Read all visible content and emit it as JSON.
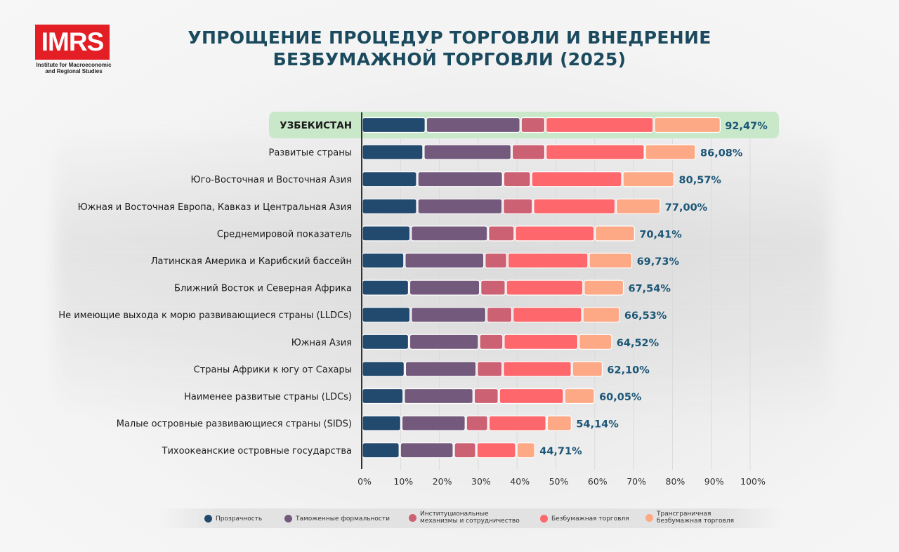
{
  "logo": {
    "name": "IMRS",
    "subtitle_line1": "Institute for Macroeconomic",
    "subtitle_line2": "and Regional Studies",
    "brand_color": "#e41e25"
  },
  "title_line1": "УПРОЩЕНИЕ ПРОЦЕДУР ТОРГОВЛИ И ВНЕДРЕНИЕ",
  "title_line2": "БЕЗБУМАЖНОЙ ТОРГОВЛИ (2025)",
  "chart_data": {
    "type": "bar",
    "orientation": "horizontal",
    "stacked": true,
    "title": "УПРОЩЕНИЕ ПРОЦЕДУР ТОРГОВЛИ И ВНЕДРЕНИЕ БЕЗБУМАЖНОЙ ТОРГОВЛИ (2025)",
    "xlabel": "",
    "ylabel": "",
    "xlim": [
      0,
      100
    ],
    "x_ticks": [
      "0%",
      "10%",
      "20%",
      "30%",
      "40%",
      "50%",
      "60%",
      "70%",
      "80%",
      "90%",
      "100%"
    ],
    "grid": true,
    "legend_position": "bottom",
    "highlight_category": "УЗБЕКИСТАН",
    "highlight_color": "#c9e8c9",
    "categories": [
      "УЗБЕКИСТАН",
      "Развитые страны",
      "Юго-Восточная и Восточная Азия",
      "Южная и Восточная Европа, Кавказ и Центральная Азия",
      "Среднемировой показатель",
      "Латинская Америка и Карибский бассейн",
      "Ближний Восток и Северная Африка",
      "Не имеющие выхода к морю развивающиеся страны (LLDCs)",
      "Южная Азия",
      "Страны Африки к югу от Сахары",
      "Наименее развитые страны (LDCs)",
      "Малые островные развивающиеся страны (SIDS)",
      "Тихоокеанские островные государства"
    ],
    "totals": [
      92.47,
      86.08,
      80.57,
      77.0,
      70.41,
      69.73,
      67.54,
      66.53,
      64.52,
      62.1,
      60.05,
      54.14,
      44.71
    ],
    "total_labels": [
      "92,47%",
      "86,08%",
      "80,57%",
      "77,00%",
      "70,41%",
      "69,73%",
      "67,54%",
      "66,53%",
      "64,52%",
      "62,10%",
      "60,05%",
      "54,14%",
      "44,71%"
    ],
    "series": [
      {
        "name": "Прозрачность",
        "color": "#22496e",
        "values": [
          16.5,
          15.9,
          14.3,
          14.3,
          12.6,
          11.0,
          12.2,
          12.6,
          12.2,
          11.1,
          10.8,
          10.2,
          9.8
        ]
      },
      {
        "name": "Таможенные формальности",
        "color": "#735a7d",
        "values": [
          24.4,
          22.7,
          22.1,
          22.0,
          19.9,
          20.6,
          18.3,
          19.5,
          18.0,
          18.5,
          18.0,
          16.6,
          13.9
        ]
      },
      {
        "name": "Институциональные механизмы и сотрудничество",
        "color": "#cc6173",
        "values": [
          6.4,
          8.7,
          7.2,
          7.8,
          6.9,
          5.9,
          6.6,
          6.7,
          6.3,
          6.7,
          6.5,
          5.8,
          5.8
        ]
      },
      {
        "name": "Безбумажная торговля",
        "color": "#fe676b",
        "values": [
          27.9,
          25.6,
          23.5,
          21.3,
          20.6,
          20.9,
          20.0,
          18.0,
          19.3,
          17.8,
          16.8,
          15.0,
          10.3
        ]
      },
      {
        "name": "Трансграничная безбумажная торговля",
        "color": "#fda985",
        "values": [
          17.27,
          13.18,
          13.47,
          11.6,
          10.41,
          11.33,
          10.44,
          9.73,
          8.72,
          8.0,
          7.95,
          6.54,
          4.91
        ]
      }
    ]
  },
  "legend": [
    {
      "label_line1": "Прозрачность",
      "label_line2": ""
    },
    {
      "label_line1": "Таможенные формальности",
      "label_line2": ""
    },
    {
      "label_line1": "Институциональные",
      "label_line2": "механизмы и сотрудничество"
    },
    {
      "label_line1": "Безбумажная торговля",
      "label_line2": ""
    },
    {
      "label_line1": "Трансграничная",
      "label_line2": "безбумажная торговля"
    }
  ]
}
